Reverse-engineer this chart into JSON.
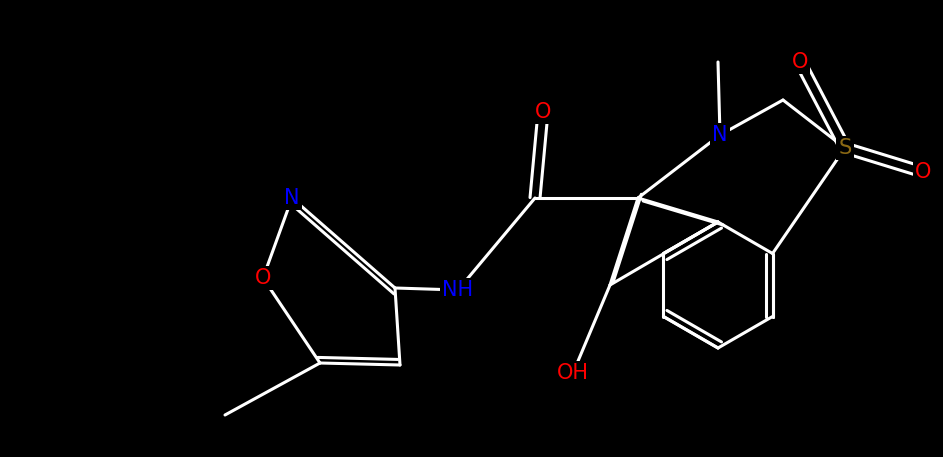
{
  "background_color": "#000000",
  "bond_color": "#ffffff",
  "atom_colors": {
    "N": "#0000ff",
    "O": "#ff0000",
    "S": "#8b6914",
    "NH": "#0000ff",
    "OH": "#ff0000"
  },
  "bond_width": 2.2,
  "font_size_atoms": 15
}
